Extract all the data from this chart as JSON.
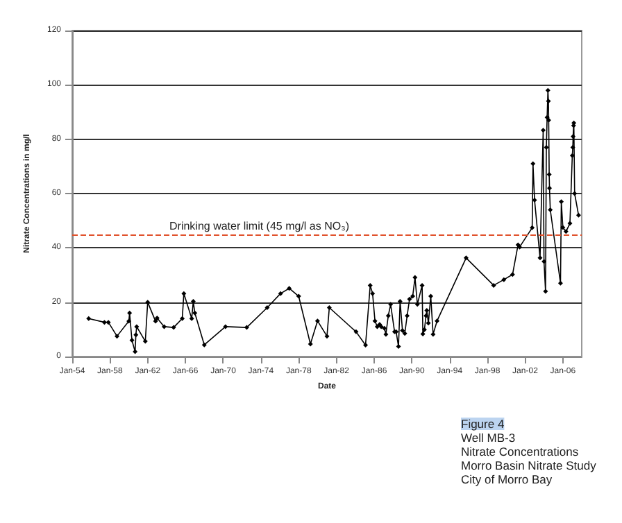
{
  "chart_data": {
    "type": "line",
    "xlabel": "Date",
    "ylabel": "Nitrate Concentrations in mg/l",
    "x": [
      "1955-10",
      "1957-06",
      "1957-11",
      "1958-10",
      "1960-01",
      "1960-02",
      "1960-05",
      "1960-09",
      "1960-10",
      "1960-11",
      "1961-10",
      "1962-01",
      "1962-11",
      "1963-01",
      "1963-10",
      "1964-10",
      "1965-09",
      "1965-11",
      "1966-09",
      "1966-11",
      "1967-01",
      "1968-01",
      "1970-04",
      "1972-07",
      "1974-09",
      "1976-02",
      "1977-01",
      "1978-01",
      "1979-04",
      "1980-01",
      "1981-01",
      "1981-04",
      "1984-02",
      "1985-02",
      "1985-08",
      "1985-11",
      "1986-02",
      "1986-05",
      "1986-08",
      "1986-10",
      "1987-02",
      "1987-04",
      "1987-07",
      "1987-10",
      "1988-03",
      "1988-05",
      "1988-08",
      "1988-10",
      "1989-01",
      "1989-04",
      "1989-07",
      "1989-10",
      "1990-02",
      "1990-05",
      "1990-08",
      "1991-02",
      "1991-03",
      "1991-05",
      "1991-07",
      "1991-08",
      "1991-10",
      "1992-01",
      "1992-04",
      "1992-09",
      "1995-10",
      "1998-09",
      "1999-10",
      "2000-09",
      "2001-04",
      "2001-06",
      "2002-10",
      "2002-11",
      "2003-01",
      "2003-08",
      "2003-12",
      "2004-01",
      "2004-03",
      "2004-04",
      "2004-05",
      "2004-06",
      "2004-06-20",
      "2004-07",
      "2004-07-20",
      "2004-08",
      "2004-09",
      "2005-10",
      "2005-11",
      "2006-01",
      "2006-05",
      "2006-10",
      "2007-01",
      "2007-01-20",
      "2007-02",
      "2007-02-20",
      "2007-03",
      "2007-04",
      "2007-09"
    ],
    "series": [
      {
        "color": "#000000",
        "values": [
          14,
          12.6,
          12.6,
          7.5,
          13,
          16,
          6,
          1.8,
          8,
          11,
          5.6,
          20,
          13,
          14.2,
          11,
          10.7,
          14,
          23.2,
          14,
          20.3,
          16,
          4.3,
          11,
          10.7,
          18,
          23.2,
          25.1,
          22.2,
          4.6,
          13.1,
          7.5,
          18,
          9.1,
          4.2,
          26.2,
          23.2,
          13.1,
          11,
          11.8,
          11,
          10.4,
          8.2,
          15,
          19.2,
          9.1,
          9.1,
          3.7,
          20.3,
          9.6,
          8.5,
          15,
          21.1,
          22.2,
          29.1,
          19.2,
          26.2,
          8.3,
          9.9,
          15,
          17,
          12.3,
          22.2,
          8.2,
          13.1,
          36.3,
          26.2,
          28.3,
          30.2,
          41.1,
          40.3,
          47.4,
          71,
          57.6,
          36.3,
          83.3,
          35,
          24,
          77,
          88,
          98,
          94,
          87,
          67,
          62,
          54,
          27,
          57,
          47.5,
          46,
          49,
          74,
          77,
          81,
          85,
          86,
          60,
          52
        ]
      }
    ],
    "xlim": [
      "1954-01",
      "2008-01"
    ],
    "xticks": [
      {
        "value": "1954-01",
        "label": "Jan-54"
      },
      {
        "value": "1958-01",
        "label": "Jan-58"
      },
      {
        "value": "1962-01",
        "label": "Jan-62"
      },
      {
        "value": "1966-01",
        "label": "Jan-66"
      },
      {
        "value": "1970-01",
        "label": "Jan-70"
      },
      {
        "value": "1974-01",
        "label": "Jan-74"
      },
      {
        "value": "1978-01",
        "label": "Jan-78"
      },
      {
        "value": "1982-01",
        "label": "Jan-82"
      },
      {
        "value": "1986-01",
        "label": "Jan-86"
      },
      {
        "value": "1990-01",
        "label": "Jan-90"
      },
      {
        "value": "1994-01",
        "label": "Jan-94"
      },
      {
        "value": "1998-01",
        "label": "Jan-98"
      },
      {
        "value": "2002-01",
        "label": "Jan-02"
      },
      {
        "value": "2006-01",
        "label": "Jan-06"
      }
    ],
    "ylim": [
      0,
      120
    ],
    "yticks": [
      0,
      20,
      40,
      60,
      80,
      100,
      120
    ],
    "grid": "y",
    "marker": "diamond",
    "line_style": "solid",
    "ref_lines": [
      {
        "axis": "y",
        "value": 45,
        "label": "Drinking water limit (45 mg/l as NO₃)",
        "color": "#e0502a",
        "line_style": "dashed"
      }
    ],
    "annotations": [
      "Figure 4",
      "Well MB-3",
      "Nitrate Concentrations",
      "Morro Basin Nitrate Study",
      "City of Morro Bay"
    ]
  }
}
